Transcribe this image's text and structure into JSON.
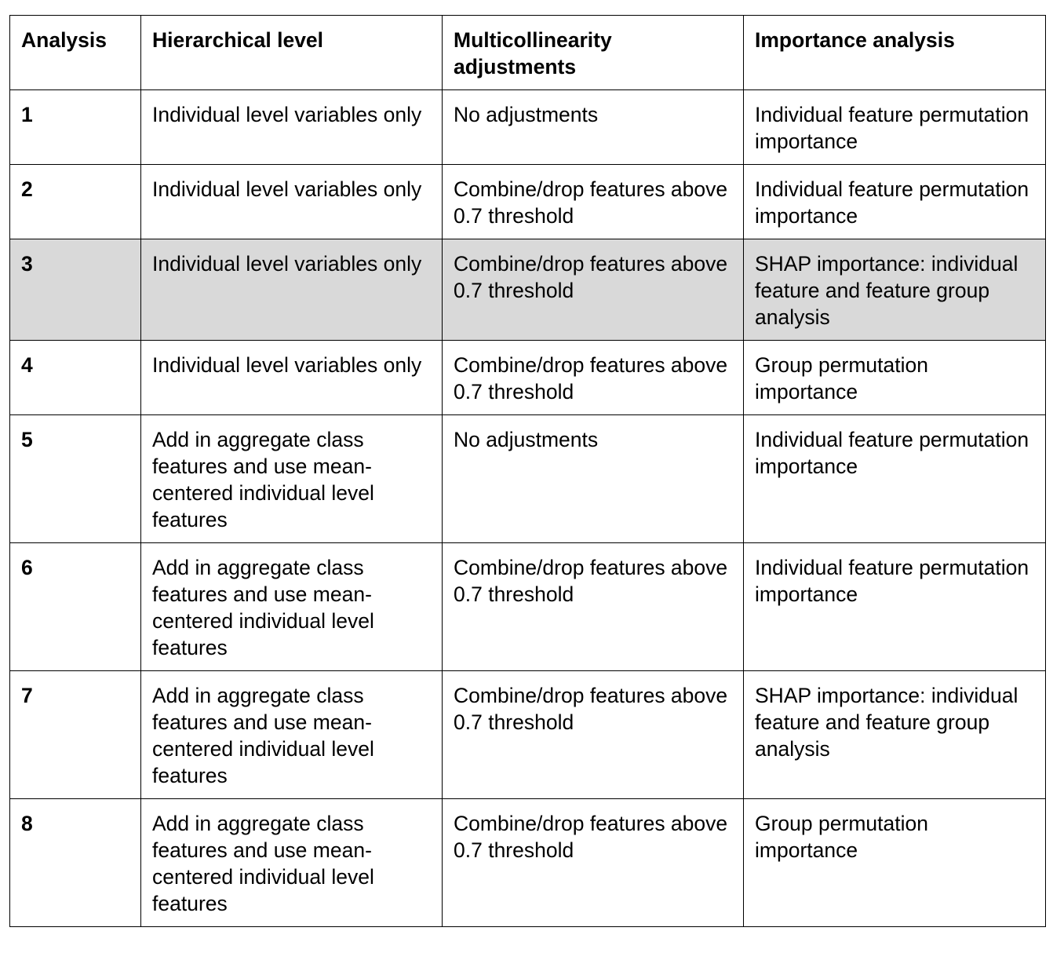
{
  "headers": [
    "Analysis",
    "Hierarchical level",
    "Multicollinearity adjustments",
    "Importance analysis"
  ],
  "rows": [
    {
      "analysis": "1",
      "level": "Individual level variables only",
      "multicollinearity": "No adjustments",
      "importance": "Individual feature permutation importance",
      "highlighted": false
    },
    {
      "analysis": "2",
      "level": "Individual level variables only",
      "multicollinearity": "Combine/drop features above 0.7 threshold",
      "importance": "Individual feature permutation importance",
      "highlighted": false
    },
    {
      "analysis": "3",
      "level": "Individual level variables only",
      "multicollinearity": "Combine/drop features above 0.7 threshold",
      "importance": "SHAP importance: individual feature and feature group analysis",
      "highlighted": true
    },
    {
      "analysis": "4",
      "level": "Individual level variables only",
      "multicollinearity": "Combine/drop features above 0.7 threshold",
      "importance": "Group permutation importance",
      "highlighted": false
    },
    {
      "analysis": "5",
      "level": "Add in aggregate class features and use mean-centered individual level features",
      "multicollinearity": "No adjustments",
      "importance": "Individual feature permutation importance",
      "highlighted": false
    },
    {
      "analysis": "6",
      "level": "Add in aggregate class features and use mean-centered individual level features",
      "multicollinearity": "Combine/drop features above 0.7 threshold",
      "importance": "Individual feature permutation importance",
      "highlighted": false
    },
    {
      "analysis": "7",
      "level": "Add in aggregate class features and use mean-centered individual level features",
      "multicollinearity": "Combine/drop features above 0.7 threshold",
      "importance": "SHAP importance: individual feature and feature group analysis",
      "highlighted": false
    },
    {
      "analysis": "8",
      "level": "Add in aggregate class features and use mean-centered individual level features",
      "multicollinearity": "Combine/drop features above 0.7 threshold",
      "importance": "Group permutation importance",
      "highlighted": false
    }
  ]
}
